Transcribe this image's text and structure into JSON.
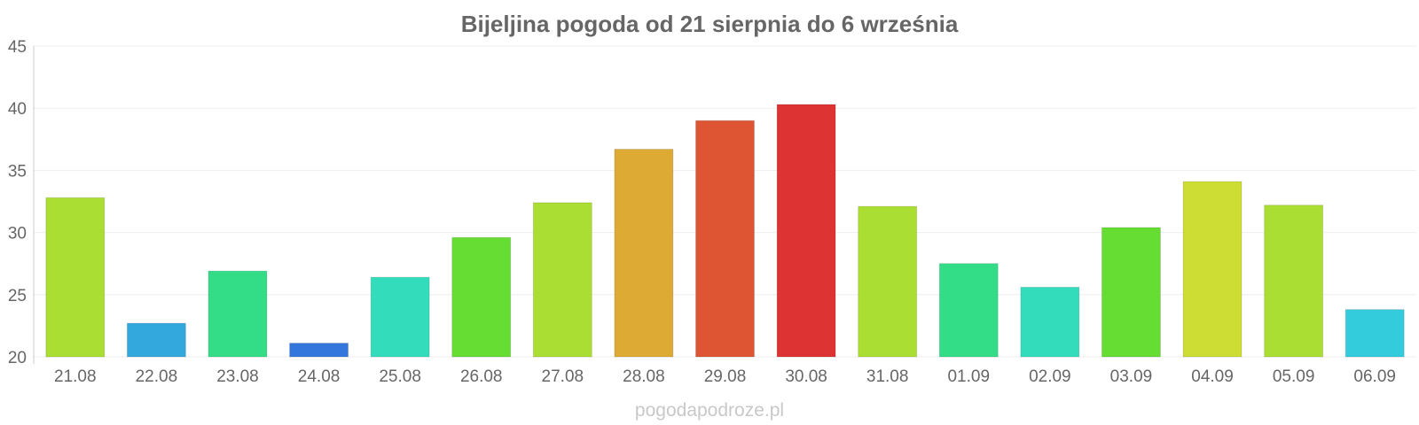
{
  "chart_data": {
    "type": "bar",
    "title": "Bijeljina pogoda od 21 sierpnia do 6 września",
    "xlabel": "",
    "ylabel": "",
    "ylim": [
      20,
      45
    ],
    "yticks": [
      20,
      25,
      30,
      35,
      40,
      45
    ],
    "grid": true,
    "categories": [
      "21.08",
      "22.08",
      "23.08",
      "24.08",
      "25.08",
      "26.08",
      "27.08",
      "28.08",
      "29.08",
      "30.08",
      "31.08",
      "01.09",
      "02.09",
      "03.09",
      "04.09",
      "05.09",
      "06.09"
    ],
    "values": [
      32.8,
      22.7,
      26.9,
      21.1,
      26.4,
      29.6,
      32.4,
      36.7,
      39.0,
      40.3,
      32.1,
      27.5,
      25.6,
      30.4,
      34.1,
      32.2,
      23.8
    ],
    "colors": [
      "#aade32",
      "#33a8dd",
      "#33dd88",
      "#3377dd",
      "#33ddbb",
      "#66dd33",
      "#aade32",
      "#ddaa33",
      "#dd5533",
      "#dd3333",
      "#aade32",
      "#33dd88",
      "#33ddbb",
      "#66dd33",
      "#cddd33",
      "#aade32",
      "#33ccdd"
    ]
  },
  "watermark": "pogodapodroze.pl"
}
